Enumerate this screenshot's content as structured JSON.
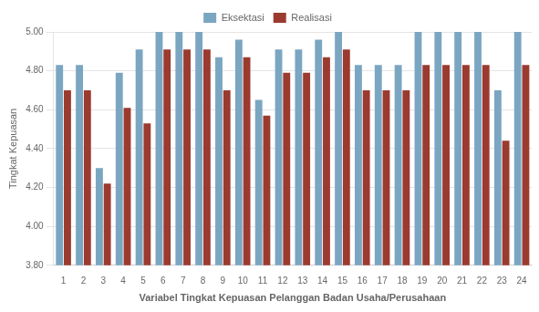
{
  "chart_data": {
    "type": "bar",
    "xlabel": "Variabel Tingkat Kepuasan Pelanggan Badan Usaha/Perusahaan",
    "ylabel": "Tingkat Kepuasan",
    "categories": [
      1,
      2,
      3,
      4,
      5,
      6,
      7,
      8,
      9,
      10,
      11,
      12,
      13,
      14,
      15,
      16,
      17,
      18,
      19,
      20,
      21,
      22,
      23,
      24
    ],
    "series": [
      {
        "name": "Eksektasi",
        "color": "#7aa6c2",
        "values": [
          4.83,
          4.83,
          4.3,
          4.79,
          4.91,
          5.0,
          5.0,
          5.0,
          4.87,
          4.96,
          4.65,
          4.91,
          4.91,
          4.96,
          5.0,
          4.83,
          4.83,
          4.83,
          5.0,
          5.0,
          5.0,
          5.0,
          4.7,
          5.0
        ]
      },
      {
        "name": "Realisasi",
        "color": "#9b3a2f",
        "values": [
          4.7,
          4.7,
          4.22,
          4.61,
          4.53,
          4.91,
          4.91,
          4.91,
          4.7,
          4.87,
          4.57,
          4.79,
          4.79,
          4.87,
          4.91,
          4.7,
          4.7,
          4.7,
          4.83,
          4.83,
          4.83,
          4.83,
          4.44,
          4.83
        ]
      }
    ],
    "ylim": [
      3.8,
      5.0
    ],
    "yticks": [
      {
        "value": 3.8,
        "label": "3.80"
      },
      {
        "value": 4.0,
        "label": "4.00"
      },
      {
        "value": 4.2,
        "label": "4.20"
      },
      {
        "value": 4.4,
        "label": "4.40"
      },
      {
        "value": 4.6,
        "label": "4.60"
      },
      {
        "value": 4.8,
        "label": "4.80"
      },
      {
        "value": 5.0,
        "label": "5.00"
      }
    ],
    "grid": true,
    "legend": "top"
  }
}
